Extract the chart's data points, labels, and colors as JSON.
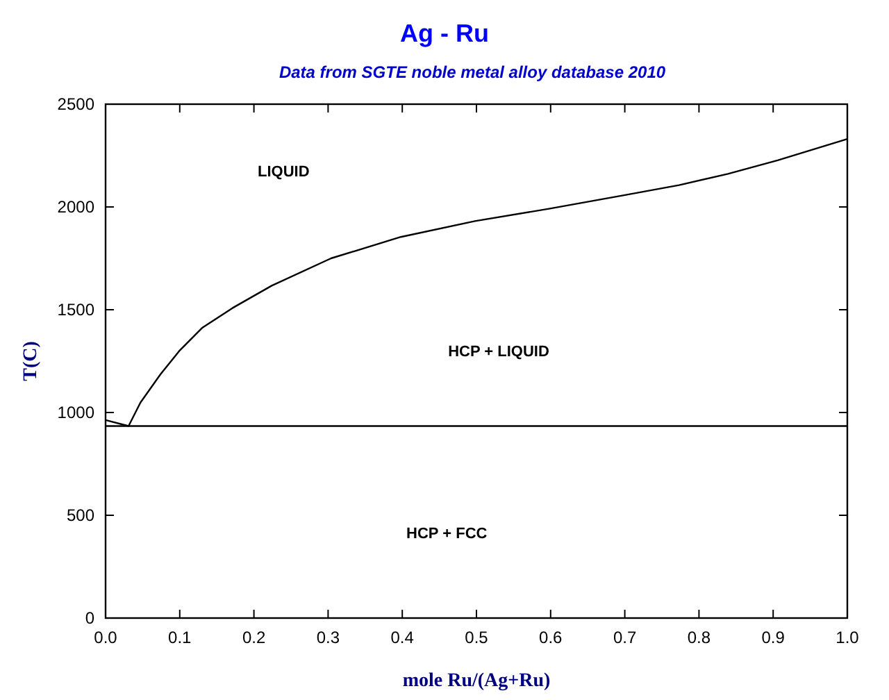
{
  "chart_data": {
    "type": "line",
    "title": "Ag - Ru",
    "subtitle": "Data from SGTE noble metal alloy database 2010",
    "xlabel": "mole Ru/(Ag+Ru)",
    "ylabel": "T(C)",
    "xlim": [
      0,
      1
    ],
    "ylim": [
      0,
      2500
    ],
    "xticks": [
      {
        "value": 0,
        "label": "0.0"
      },
      0.1,
      0.2,
      0.3,
      0.4,
      0.5,
      0.6,
      0.7,
      0.8,
      0.9,
      {
        "value": 1,
        "label": "1.0"
      }
    ],
    "yticks": [
      0,
      500,
      1000,
      1500,
      2000,
      2500
    ],
    "series": [
      {
        "color": "#000000",
        "x": [
          0,
          0.031,
          0.047,
          0.074,
          0.1,
          0.13,
          0.171,
          0.224,
          0.304,
          0.398,
          0.498,
          0.599,
          0.699,
          0.773,
          0.839,
          0.906,
          1
        ],
        "values": [
          963,
          934,
          1048,
          1186,
          1302,
          1411,
          1508,
          1617,
          1750,
          1854,
          1931,
          1992,
          2057,
          2106,
          2161,
          2227,
          2331
        ]
      }
    ],
    "ref_lines": [
      {
        "axis": "y",
        "value": 934,
        "color": "#000000"
      }
    ],
    "annotations": [
      "LIQUID",
      "HCP + LIQUID",
      "HCP + FCC"
    ],
    "marker": "none",
    "line_style": "solid",
    "grid": false
  }
}
